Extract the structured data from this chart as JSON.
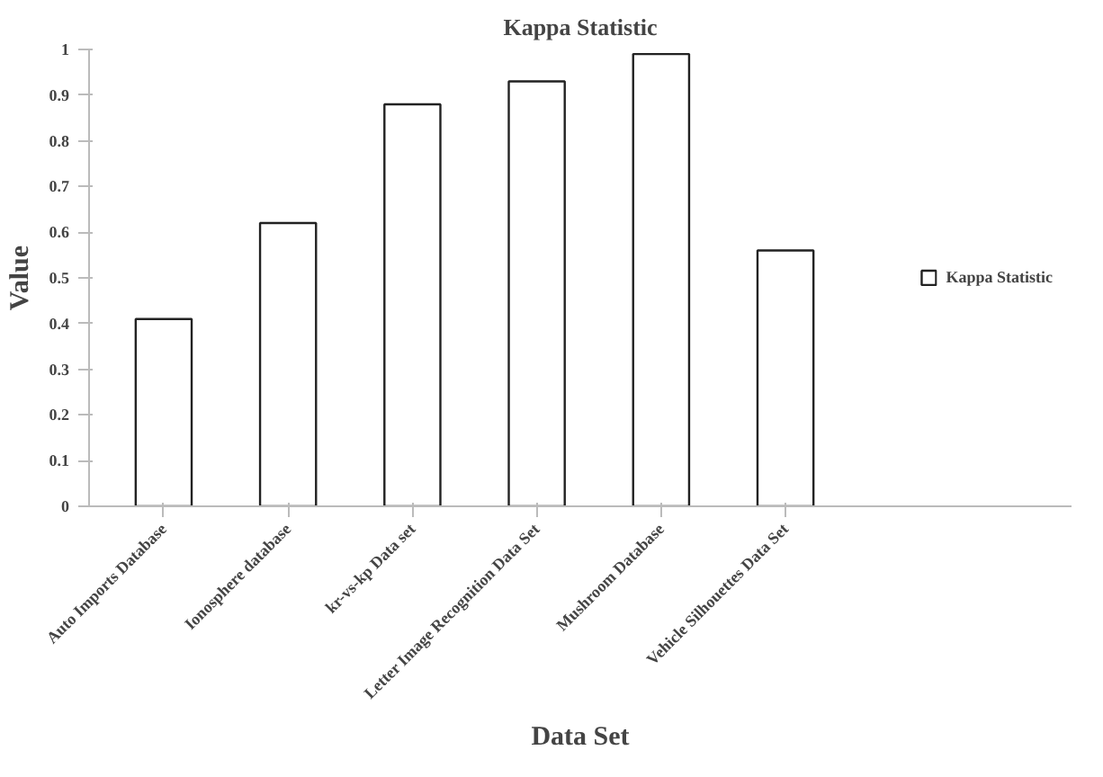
{
  "chart_data": {
    "type": "bar",
    "title": "Kappa Statistic",
    "xlabel": "Data Set",
    "ylabel": "Value",
    "categories": [
      "Auto Imports Database",
      "Ionosphere database",
      "kr-vs-kp Data set",
      "Letter Image Recognition Data Set",
      "Mushroom Database",
      "Vehicle Silhouettes Data Set"
    ],
    "series": [
      {
        "name": "Kappa Statistic",
        "color": "#ffffff",
        "values": [
          0.41,
          0.62,
          0.88,
          0.93,
          0.99,
          0.56
        ]
      }
    ],
    "ylim": [
      0,
      1
    ],
    "yticks": [
      0,
      0.1,
      0.2,
      0.3,
      0.4,
      0.5,
      0.6,
      0.7,
      0.8,
      0.9,
      1
    ],
    "legend": "right"
  }
}
